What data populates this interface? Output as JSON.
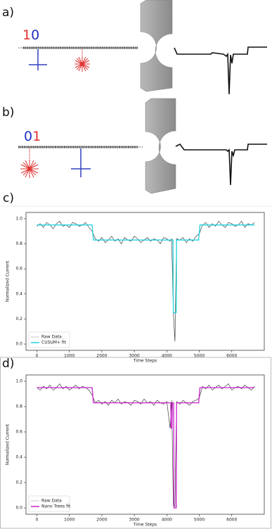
{
  "panels": [
    "a)",
    "b)",
    "c)",
    "d)"
  ],
  "diagrams": [
    {
      "digits": [
        "1",
        "0"
      ]
    },
    {
      "digits": [
        "0",
        "1"
      ]
    }
  ],
  "chart_data": [
    {
      "type": "line",
      "xlabel": "Time Steps",
      "ylabel": "Normalized Current",
      "xlim": [
        -335,
        7000
      ],
      "ylim": [
        -0.05,
        1.05
      ],
      "xticks": [
        0,
        1000,
        2000,
        3000,
        4000,
        5000,
        6000
      ],
      "yticks": [
        {
          "value": 0,
          "label": "0.0"
        },
        0.2,
        0.4,
        0.6,
        0.8,
        {
          "value": 1,
          "label": "1.0"
        }
      ],
      "legend": "lower-left",
      "series": [
        {
          "name": "Raw Data",
          "color": "#222222",
          "x": [
            0,
            100,
            200,
            300,
            400,
            500,
            600,
            700,
            800,
            900,
            1000,
            1100,
            1200,
            1300,
            1400,
            1500,
            1600,
            1700,
            1800,
            1900,
            2000,
            2100,
            2200,
            2300,
            2400,
            2500,
            2600,
            2700,
            2800,
            2900,
            3000,
            3100,
            3200,
            3300,
            3400,
            3500,
            3600,
            3700,
            3800,
            3900,
            4000,
            4100,
            4150,
            4200,
            4250,
            4300,
            4400,
            4500,
            4600,
            4700,
            4800,
            4900,
            5000,
            5100,
            5200,
            5300,
            5400,
            5500,
            5600,
            5700,
            5800,
            5900,
            6000,
            6100,
            6200,
            6300,
            6400,
            6500,
            6600,
            6700
          ],
          "values": [
            0.94,
            0.96,
            0.93,
            0.97,
            0.95,
            0.92,
            0.96,
            0.98,
            0.94,
            0.95,
            0.93,
            0.97,
            0.96,
            0.94,
            0.95,
            0.97,
            0.93,
            0.9,
            0.84,
            0.82,
            0.85,
            0.81,
            0.83,
            0.86,
            0.82,
            0.84,
            0.8,
            0.85,
            0.83,
            0.82,
            0.86,
            0.84,
            0.81,
            0.83,
            0.85,
            0.82,
            0.84,
            0.83,
            0.8,
            0.85,
            0.84,
            0.82,
            0.84,
            0.26,
            0.02,
            0.84,
            0.83,
            0.85,
            0.81,
            0.84,
            0.82,
            0.86,
            0.88,
            0.95,
            0.97,
            0.93,
            0.96,
            0.94,
            0.98,
            0.95,
            0.93,
            0.97,
            0.96,
            0.94,
            0.95,
            0.98,
            0.93,
            0.96,
            0.95,
            0.97
          ]
        },
        {
          "name": "CUSUM+ fit",
          "color": "#22d3dd",
          "x": [
            0,
            1700,
            1740,
            4190,
            4200,
            4290,
            4300,
            4980,
            5020,
            6700
          ],
          "values": [
            0.95,
            0.95,
            0.83,
            0.83,
            0.25,
            0.25,
            0.83,
            0.83,
            0.95,
            0.95
          ]
        }
      ]
    },
    {
      "type": "line",
      "xlabel": "Time Steps",
      "ylabel": "Normalized Current",
      "xlim": [
        -335,
        7000
      ],
      "ylim": [
        -0.05,
        1.05
      ],
      "xticks": [
        0,
        1000,
        2000,
        3000,
        4000,
        5000,
        6000
      ],
      "yticks": [
        {
          "value": 0,
          "label": "0.0"
        },
        0.2,
        0.4,
        0.6,
        0.8,
        {
          "value": 1,
          "label": "1.0"
        }
      ],
      "legend": "lower-left",
      "series": [
        {
          "name": "Raw Data",
          "color": "#222222",
          "x": [
            0,
            100,
            200,
            300,
            400,
            500,
            600,
            700,
            800,
            900,
            1000,
            1100,
            1200,
            1300,
            1400,
            1500,
            1600,
            1700,
            1800,
            1900,
            2000,
            2100,
            2200,
            2300,
            2400,
            2500,
            2600,
            2700,
            2800,
            2900,
            3000,
            3100,
            3200,
            3300,
            3400,
            3500,
            3600,
            3700,
            3800,
            3900,
            4000,
            4100,
            4150,
            4200,
            4250,
            4300,
            4400,
            4500,
            4600,
            4700,
            4800,
            4900,
            5000,
            5100,
            5200,
            5300,
            5400,
            5500,
            5600,
            5700,
            5800,
            5900,
            6000,
            6100,
            6200,
            6300,
            6400,
            6500,
            6600,
            6700
          ],
          "values": [
            0.95,
            0.93,
            0.96,
            0.94,
            0.97,
            0.93,
            0.95,
            0.98,
            0.94,
            0.96,
            0.93,
            0.95,
            0.97,
            0.94,
            0.96,
            0.95,
            0.93,
            0.89,
            0.83,
            0.85,
            0.82,
            0.84,
            0.81,
            0.85,
            0.83,
            0.86,
            0.82,
            0.84,
            0.83,
            0.81,
            0.85,
            0.84,
            0.82,
            0.86,
            0.83,
            0.84,
            0.81,
            0.85,
            0.83,
            0.82,
            0.84,
            0.63,
            0.85,
            0.02,
            0.01,
            0.84,
            0.82,
            0.85,
            0.83,
            0.81,
            0.84,
            0.85,
            0.87,
            0.96,
            0.94,
            0.97,
            0.93,
            0.95,
            0.97,
            0.94,
            0.96,
            0.98,
            0.93,
            0.95,
            0.96,
            0.94,
            0.97,
            0.95,
            0.93,
            0.96
          ]
        },
        {
          "name": "Nano Trees fit",
          "color": "#cc22cc",
          "x": [
            0,
            1700,
            1740,
            4120,
            4130,
            4160,
            4170,
            4210,
            4220,
            4290,
            4300,
            4980,
            5020,
            6700
          ],
          "values": [
            0.95,
            0.95,
            0.83,
            0.83,
            0.63,
            0.63,
            0.83,
            0.83,
            0,
            0,
            0.83,
            0.83,
            0.95,
            0.95
          ]
        }
      ]
    }
  ]
}
